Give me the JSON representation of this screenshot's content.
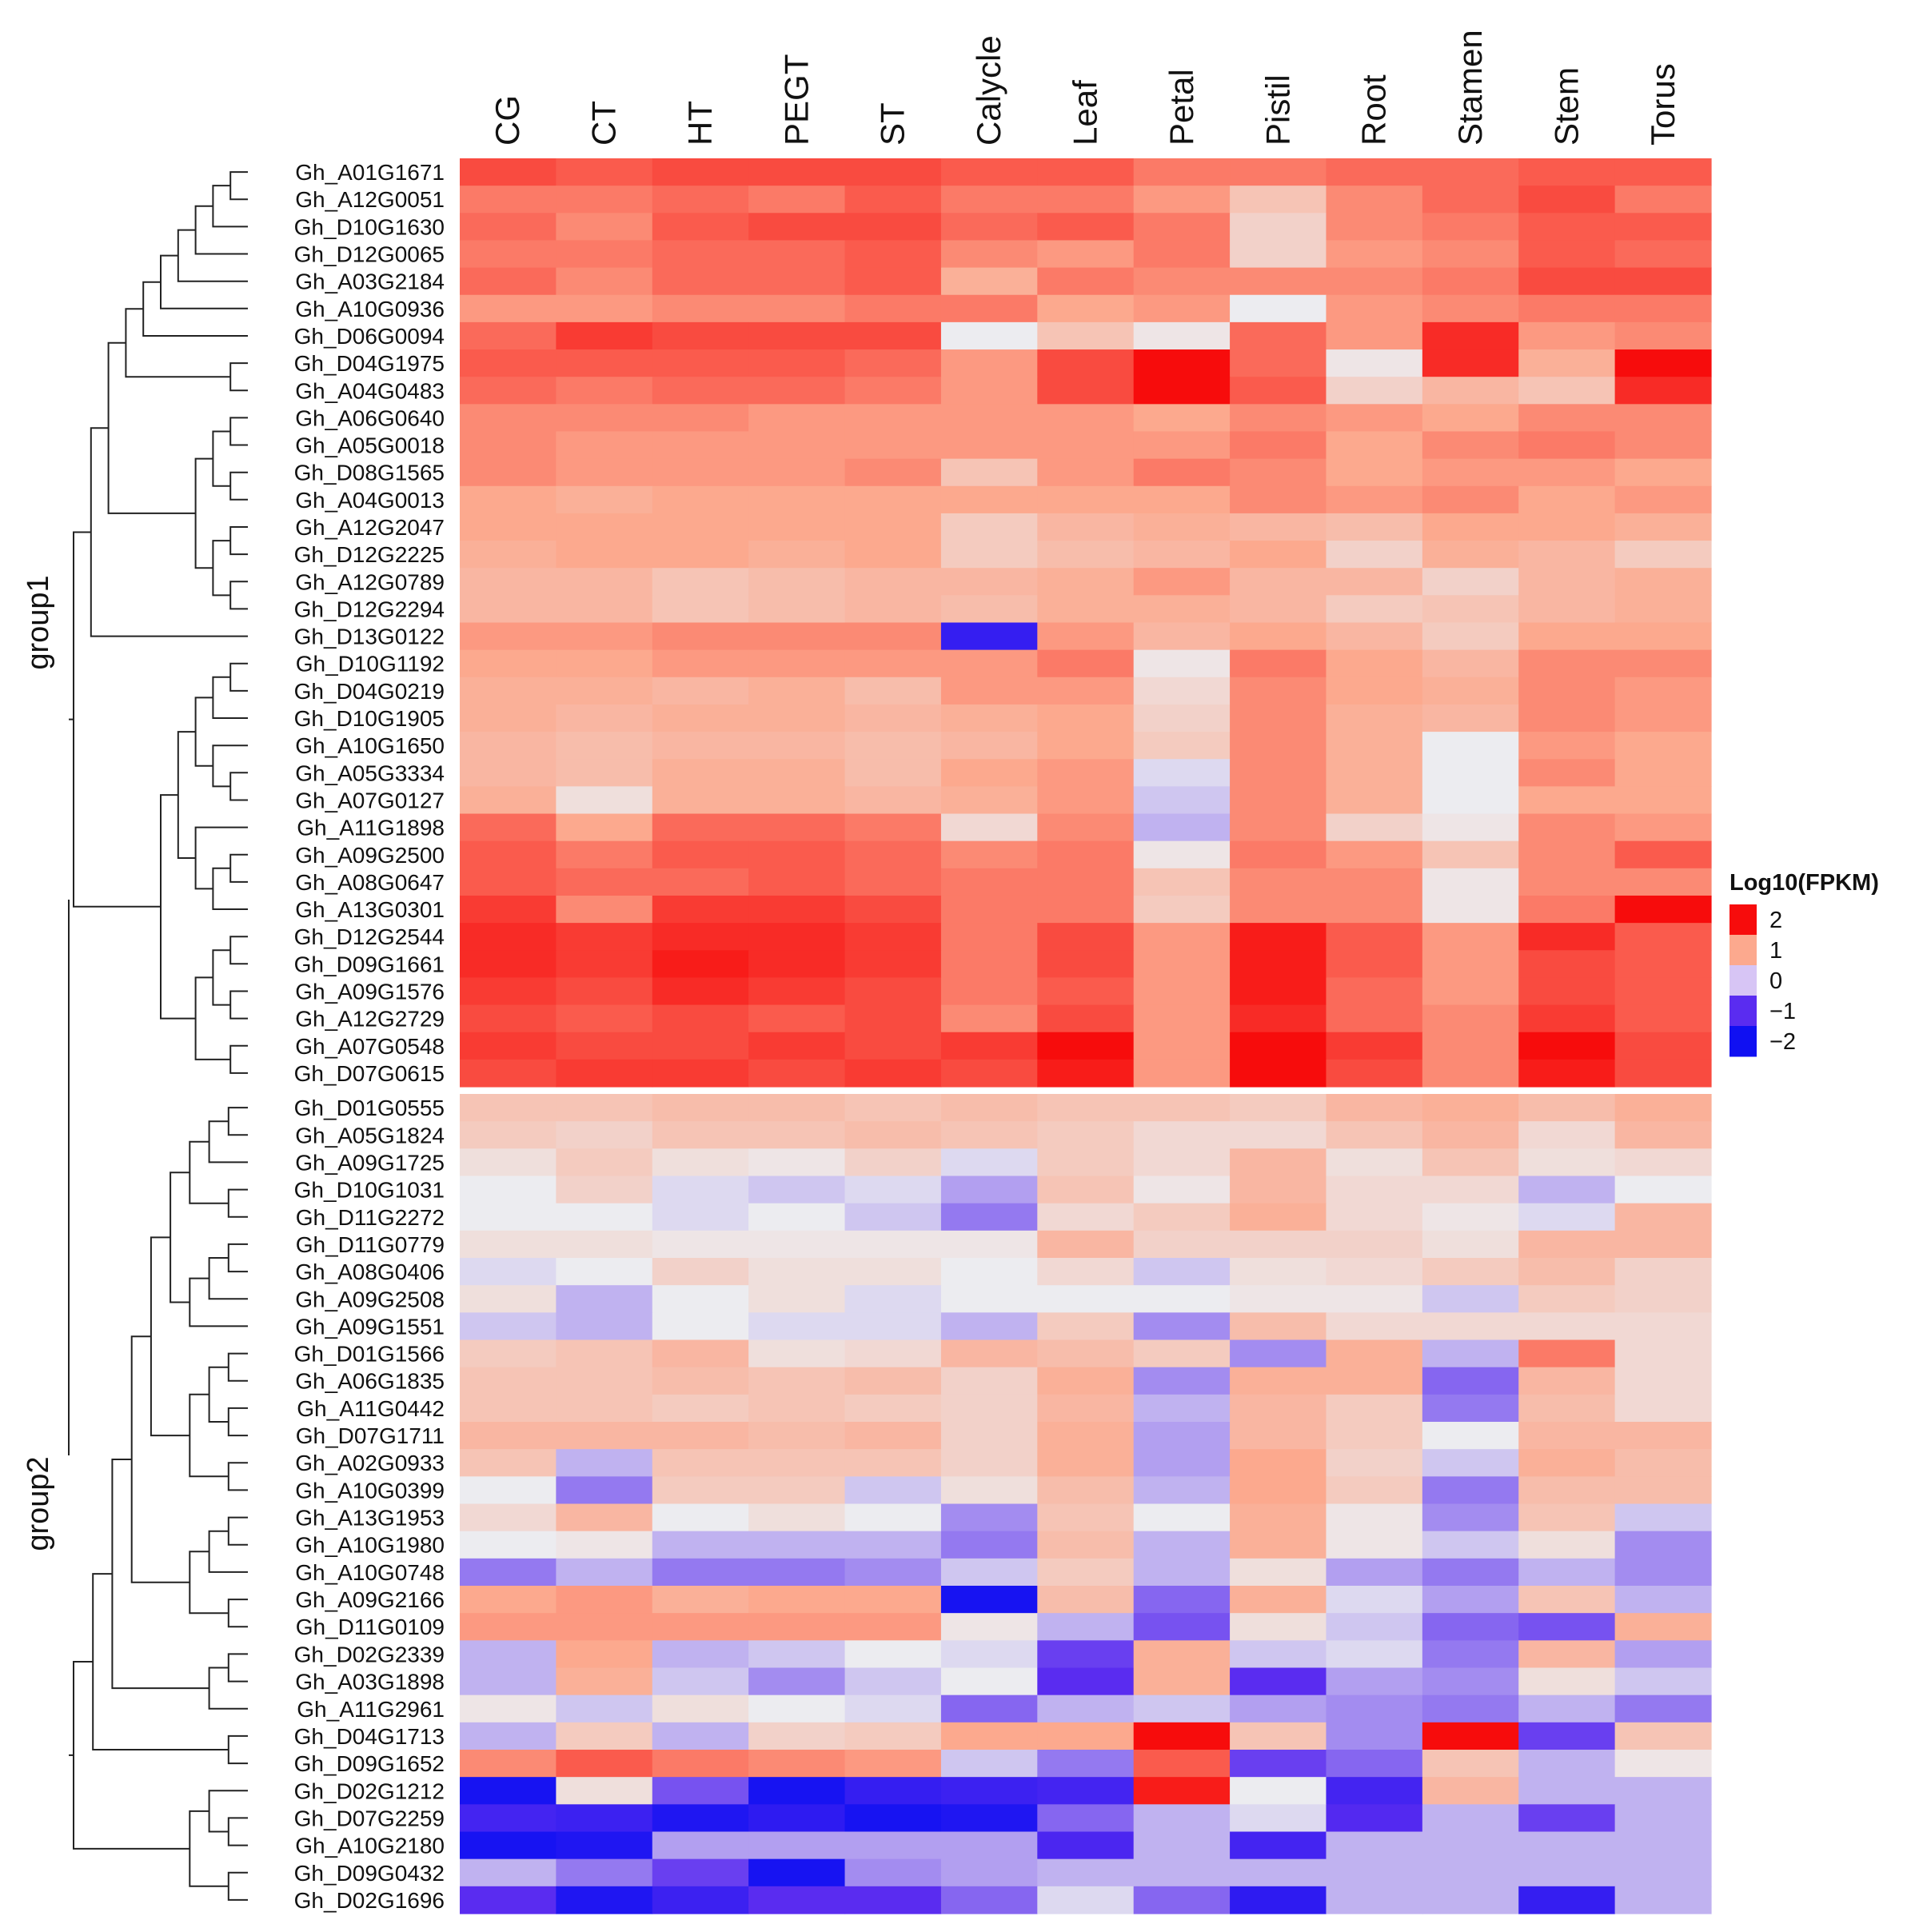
{
  "chart_data": {
    "type": "heatmap",
    "legend": {
      "title": "Log10(FPKM)",
      "ticks": [
        "2",
        "1",
        "0",
        "−1",
        "−2"
      ],
      "tick_values": [
        2,
        1,
        0,
        -1,
        -2
      ],
      "colors": [
        "#f70c0c",
        "#fca98e",
        "#d7c5f5",
        "#5a2cf0",
        "#1010f2"
      ]
    },
    "columns": [
      "CG",
      "CT",
      "HT",
      "PEGT",
      "ST",
      "Calycle",
      "Leaf",
      "Petal",
      "Pistil",
      "Root",
      "Stamen",
      "Stem",
      "Torus"
    ],
    "groups": [
      {
        "label": "group1",
        "rows": [
          "Gh_A01G1671",
          "Gh_A12G0051",
          "Gh_D10G1630",
          "Gh_D12G0065",
          "Gh_A03G2184",
          "Gh_A10G0936",
          "Gh_D06G0094",
          "Gh_D04G1975",
          "Gh_A04G0483",
          "Gh_A06G0640",
          "Gh_A05G0018",
          "Gh_D08G1565",
          "Gh_A04G0013",
          "Gh_A12G2047",
          "Gh_D12G2225",
          "Gh_A12G0789",
          "Gh_D12G2294",
          "Gh_D13G0122",
          "Gh_D10G1192",
          "Gh_D04G0219",
          "Gh_D10G1905",
          "Gh_A10G1650",
          "Gh_A05G3334",
          "Gh_A07G0127",
          "Gh_A11G1898",
          "Gh_A09G2500",
          "Gh_A08G0647",
          "Gh_A13G0301",
          "Gh_D12G2544",
          "Gh_D09G1661",
          "Gh_A09G1576",
          "Gh_A12G2729",
          "Gh_A07G0548",
          "Gh_D07G0615"
        ],
        "values": [
          [
            1.6,
            1.5,
            1.6,
            1.6,
            1.6,
            1.5,
            1.5,
            1.3,
            1.3,
            1.4,
            1.4,
            1.5,
            1.5
          ],
          [
            1.3,
            1.3,
            1.4,
            1.3,
            1.5,
            1.3,
            1.3,
            1.1,
            0.6,
            1.2,
            1.4,
            1.6,
            1.3
          ],
          [
            1.4,
            1.2,
            1.5,
            1.6,
            1.6,
            1.4,
            1.5,
            1.3,
            0.4,
            1.2,
            1.3,
            1.5,
            1.5
          ],
          [
            1.3,
            1.3,
            1.4,
            1.4,
            1.5,
            1.2,
            1.1,
            1.3,
            0.4,
            1.1,
            1.2,
            1.5,
            1.4
          ],
          [
            1.4,
            1.2,
            1.4,
            1.4,
            1.5,
            0.9,
            1.3,
            1.2,
            1.2,
            1.2,
            1.3,
            1.6,
            1.6
          ],
          [
            1.1,
            1.1,
            1.2,
            1.2,
            1.3,
            1.3,
            1.0,
            1.1,
            0.0,
            1.1,
            1.2,
            1.3,
            1.3
          ],
          [
            1.4,
            1.7,
            1.6,
            1.6,
            1.6,
            0.0,
            0.6,
            0.1,
            1.4,
            1.1,
            1.8,
            1.1,
            1.2
          ],
          [
            1.5,
            1.5,
            1.5,
            1.5,
            1.4,
            1.1,
            1.6,
            2.0,
            1.4,
            0.1,
            1.8,
            0.9,
            2.0
          ],
          [
            1.4,
            1.3,
            1.4,
            1.4,
            1.3,
            1.1,
            1.6,
            2.0,
            1.5,
            0.4,
            0.8,
            0.6,
            1.8
          ],
          [
            1.2,
            1.2,
            1.2,
            1.1,
            1.1,
            1.1,
            1.1,
            1.0,
            1.2,
            1.1,
            1.0,
            1.2,
            1.2
          ],
          [
            1.2,
            1.1,
            1.1,
            1.1,
            1.1,
            1.1,
            1.1,
            1.1,
            1.3,
            1.0,
            1.2,
            1.3,
            1.2
          ],
          [
            1.2,
            1.1,
            1.1,
            1.1,
            1.2,
            0.6,
            1.1,
            1.3,
            1.2,
            1.0,
            1.1,
            1.1,
            1.0
          ],
          [
            1.0,
            0.9,
            1.0,
            1.0,
            1.0,
            1.0,
            1.0,
            1.0,
            1.2,
            1.1,
            1.2,
            1.0,
            1.1
          ],
          [
            1.0,
            1.0,
            1.0,
            1.0,
            1.0,
            0.5,
            0.8,
            0.9,
            0.8,
            0.7,
            1.0,
            1.0,
            0.9
          ],
          [
            0.9,
            1.0,
            1.0,
            0.9,
            1.0,
            0.5,
            0.7,
            0.8,
            1.0,
            0.4,
            0.9,
            0.8,
            0.5
          ],
          [
            0.8,
            0.8,
            0.6,
            0.7,
            0.8,
            0.8,
            0.9,
            1.1,
            0.8,
            0.8,
            0.4,
            0.8,
            0.9
          ],
          [
            0.8,
            0.8,
            0.6,
            0.7,
            0.8,
            0.7,
            0.9,
            0.9,
            0.8,
            0.5,
            0.6,
            0.8,
            0.9
          ],
          [
            1.1,
            1.1,
            1.2,
            1.2,
            1.2,
            -1.5,
            1.1,
            0.8,
            1.0,
            0.8,
            0.5,
            1.0,
            1.0
          ],
          [
            1.0,
            1.0,
            1.1,
            1.1,
            1.1,
            1.1,
            1.3,
            0.1,
            1.3,
            1.0,
            0.8,
            1.2,
            1.2
          ],
          [
            0.9,
            0.9,
            0.8,
            0.9,
            0.7,
            1.1,
            1.1,
            0.3,
            1.2,
            1.0,
            0.9,
            1.2,
            1.1
          ],
          [
            0.9,
            0.8,
            0.9,
            0.9,
            0.8,
            0.9,
            1.0,
            0.4,
            1.2,
            0.9,
            0.8,
            1.2,
            1.1
          ],
          [
            0.8,
            0.7,
            0.8,
            0.8,
            0.7,
            0.8,
            1.0,
            0.5,
            1.2,
            0.9,
            0.0,
            1.1,
            1.0
          ],
          [
            0.8,
            0.7,
            0.9,
            0.9,
            0.7,
            1.0,
            1.1,
            -0.1,
            1.2,
            0.9,
            0.0,
            1.2,
            1.0
          ],
          [
            0.9,
            0.2,
            0.9,
            0.9,
            0.8,
            0.9,
            1.1,
            -0.2,
            1.2,
            0.9,
            0.0,
            1.0,
            1.0
          ],
          [
            1.4,
            1.0,
            1.4,
            1.4,
            1.3,
            0.3,
            1.2,
            -0.3,
            1.2,
            0.4,
            0.1,
            1.2,
            1.1
          ],
          [
            1.5,
            1.3,
            1.5,
            1.5,
            1.4,
            1.2,
            1.3,
            0.1,
            1.3,
            1.1,
            0.6,
            1.2,
            1.5
          ],
          [
            1.5,
            1.4,
            1.4,
            1.5,
            1.4,
            1.3,
            1.3,
            0.6,
            1.2,
            1.2,
            0.1,
            1.2,
            1.2
          ],
          [
            1.7,
            1.2,
            1.7,
            1.7,
            1.6,
            1.3,
            1.3,
            0.5,
            1.2,
            1.2,
            0.1,
            1.3,
            2.0
          ],
          [
            1.8,
            1.7,
            1.8,
            1.8,
            1.7,
            1.3,
            1.6,
            1.1,
            1.9,
            1.5,
            1.1,
            1.8,
            1.5
          ],
          [
            1.8,
            1.7,
            1.9,
            1.8,
            1.7,
            1.3,
            1.6,
            1.1,
            1.9,
            1.5,
            1.1,
            1.6,
            1.5
          ],
          [
            1.7,
            1.6,
            1.8,
            1.7,
            1.6,
            1.3,
            1.5,
            1.1,
            1.9,
            1.4,
            1.1,
            1.6,
            1.5
          ],
          [
            1.6,
            1.5,
            1.6,
            1.5,
            1.6,
            1.2,
            1.6,
            1.1,
            1.8,
            1.4,
            1.2,
            1.7,
            1.5
          ],
          [
            1.7,
            1.6,
            1.6,
            1.7,
            1.6,
            1.7,
            2.0,
            1.1,
            2.0,
            1.7,
            1.2,
            2.0,
            1.6
          ],
          [
            1.6,
            1.7,
            1.7,
            1.6,
            1.7,
            1.6,
            1.9,
            1.1,
            2.0,
            1.6,
            1.2,
            1.9,
            1.6
          ]
        ]
      },
      {
        "label": "group2",
        "rows": [
          "Gh_D01G0555",
          "Gh_A05G1824",
          "Gh_A09G1725",
          "Gh_D10G1031",
          "Gh_D11G2272",
          "Gh_D11G0779",
          "Gh_A08G0406",
          "Gh_A09G2508",
          "Gh_A09G1551",
          "Gh_D01G1566",
          "Gh_A06G1835",
          "Gh_A11G0442",
          "Gh_D07G1711",
          "Gh_A02G0933",
          "Gh_A10G0399",
          "Gh_A13G1953",
          "Gh_A10G1980",
          "Gh_A10G0748",
          "Gh_A09G2166",
          "Gh_D11G0109",
          "Gh_D02G2339",
          "Gh_A03G1898",
          "Gh_A11G2961",
          "Gh_D04G1713",
          "Gh_D09G1652",
          "Gh_D02G1212",
          "Gh_D07G2259",
          "Gh_A10G2180",
          "Gh_D09G0432",
          "Gh_D02G1696"
        ],
        "values": [
          [
            0.6,
            0.6,
            0.7,
            0.7,
            0.6,
            0.7,
            0.6,
            0.6,
            0.5,
            0.8,
            0.9,
            0.7,
            0.9
          ],
          [
            0.5,
            0.4,
            0.6,
            0.6,
            0.7,
            0.6,
            0.5,
            0.3,
            0.3,
            0.6,
            0.8,
            0.3,
            0.8
          ],
          [
            0.2,
            0.5,
            0.2,
            0.1,
            0.4,
            -0.1,
            0.5,
            0.3,
            0.8,
            0.2,
            0.6,
            0.2,
            0.3
          ],
          [
            0.0,
            0.4,
            -0.1,
            -0.2,
            -0.1,
            -0.4,
            0.6,
            0.1,
            0.8,
            0.3,
            0.3,
            -0.3,
            0.0
          ],
          [
            0.0,
            0.0,
            -0.1,
            0.0,
            -0.2,
            -0.6,
            0.3,
            0.5,
            0.9,
            0.3,
            0.1,
            -0.1,
            0.8
          ],
          [
            0.2,
            0.2,
            0.1,
            0.1,
            0.1,
            0.1,
            0.8,
            0.4,
            0.4,
            0.4,
            0.2,
            0.8,
            0.8
          ],
          [
            -0.1,
            0.0,
            0.4,
            0.2,
            0.2,
            0.0,
            0.3,
            -0.2,
            0.2,
            0.3,
            0.5,
            0.7,
            0.4
          ],
          [
            0.2,
            -0.3,
            0.0,
            0.2,
            -0.1,
            0.0,
            0.0,
            0.0,
            0.1,
            0.1,
            -0.2,
            0.5,
            0.4
          ],
          [
            -0.2,
            -0.3,
            0.0,
            -0.1,
            -0.1,
            -0.3,
            0.5,
            -0.5,
            0.7,
            0.3,
            0.3,
            0.3,
            0.3
          ],
          [
            0.5,
            0.6,
            0.8,
            0.2,
            0.3,
            0.8,
            0.7,
            0.5,
            -0.5,
            0.9,
            -0.3,
            1.3,
            0.3
          ],
          [
            0.6,
            0.6,
            0.7,
            0.6,
            0.7,
            0.4,
            0.9,
            -0.5,
            0.9,
            0.9,
            -0.7,
            0.8,
            0.3
          ],
          [
            0.6,
            0.6,
            0.5,
            0.6,
            0.5,
            0.4,
            0.8,
            -0.3,
            0.8,
            0.5,
            -0.6,
            0.7,
            0.3
          ],
          [
            0.8,
            0.8,
            0.8,
            0.7,
            0.8,
            0.4,
            0.9,
            -0.4,
            0.8,
            0.5,
            0.0,
            0.8,
            0.8
          ],
          [
            0.6,
            -0.3,
            0.6,
            0.6,
            0.6,
            0.4,
            0.9,
            -0.4,
            1.0,
            0.4,
            -0.2,
            0.9,
            0.7
          ],
          [
            0.0,
            -0.6,
            0.5,
            0.5,
            -0.2,
            0.2,
            0.7,
            -0.3,
            1.0,
            0.5,
            -0.6,
            0.7,
            0.7
          ],
          [
            0.3,
            0.8,
            0.0,
            0.2,
            0.0,
            -0.5,
            0.6,
            0.0,
            0.9,
            0.1,
            -0.5,
            0.6,
            -0.2
          ],
          [
            0.0,
            0.1,
            -0.3,
            -0.3,
            -0.3,
            -0.6,
            0.7,
            -0.3,
            0.9,
            0.1,
            -0.2,
            0.2,
            -0.5
          ],
          [
            -0.6,
            -0.3,
            -0.6,
            -0.6,
            -0.5,
            -0.2,
            0.5,
            -0.3,
            0.2,
            -0.4,
            -0.6,
            -0.3,
            -0.5
          ],
          [
            1.0,
            1.1,
            0.9,
            1.0,
            1.0,
            -1.9,
            0.7,
            -0.7,
            0.9,
            -0.1,
            -0.4,
            0.6,
            -0.3
          ],
          [
            1.1,
            1.1,
            1.1,
            1.1,
            1.1,
            0.1,
            -0.3,
            -0.8,
            0.2,
            -0.2,
            -0.7,
            -0.8,
            0.9
          ],
          [
            -0.3,
            1.0,
            -0.3,
            -0.2,
            0.0,
            -0.1,
            -0.9,
            0.9,
            -0.2,
            -0.1,
            -0.6,
            0.8,
            -0.4
          ],
          [
            -0.3,
            0.9,
            -0.2,
            -0.5,
            -0.2,
            0.0,
            -1.0,
            0.9,
            -1.0,
            -0.4,
            -0.5,
            0.2,
            -0.2
          ],
          [
            0.1,
            -0.2,
            0.2,
            0.0,
            -0.1,
            -0.7,
            -0.3,
            -0.2,
            -0.4,
            -0.5,
            -0.6,
            -0.3,
            -0.6
          ],
          [
            -0.3,
            0.5,
            -0.3,
            0.4,
            0.5,
            1.0,
            1.0,
            2.0,
            0.6,
            -0.5,
            2.0,
            -0.9,
            0.6
          ],
          [
            1.2,
            1.5,
            1.3,
            1.2,
            1.1,
            -0.2,
            -0.6,
            1.5,
            -0.9,
            -0.7,
            0.6,
            -0.3,
            0.1
          ],
          [
            -1.9,
            0.2,
            -0.8,
            -1.9,
            -1.5,
            -1.4,
            -1.3,
            1.9,
            0.0,
            -1.3,
            0.8,
            -0.3,
            -0.3
          ],
          [
            -1.3,
            -1.4,
            -1.8,
            -1.6,
            -1.9,
            -1.8,
            -0.7,
            -0.3,
            -0.1,
            -1.1,
            -0.3,
            -0.9,
            -0.3
          ],
          [
            -1.9,
            -1.8,
            -0.4,
            -0.4,
            -0.4,
            -0.4,
            -1.2,
            -0.3,
            -1.3,
            -0.3,
            -0.3,
            -0.3,
            -0.3
          ],
          [
            -0.3,
            -0.6,
            -0.9,
            -1.9,
            -0.5,
            -0.4,
            -0.3,
            -0.3,
            -0.3,
            -0.3,
            -0.3,
            -0.3,
            -0.3
          ],
          [
            -1.0,
            -1.8,
            -1.4,
            -1.0,
            -1.0,
            -0.7,
            -0.1,
            -0.7,
            -1.6,
            -0.3,
            -0.3,
            -1.5,
            -0.3
          ]
        ]
      }
    ],
    "dendrogram": {
      "group1": "[[[[[[[[[[0,1],2],3],4],5],6],[7,8]],[[[9,10],[11,12]],[[13,14],[15,16]]]],17],[[[[[18,19],20],[21,[22,23]]],[24,[[25,26],27]]],[[[28,29],[30,31]],[32,33]]]]",
      "group2": "[[[[[[[[[0,1],2],[3,4]],[[[5,6],7],8]],[[[9,10],[11,12]],[13,14]]],[[[15,16],17],[18,19]]],[[20,21],22]],[23,24]],[[25,[26,27]],[28,29]]]"
    }
  }
}
